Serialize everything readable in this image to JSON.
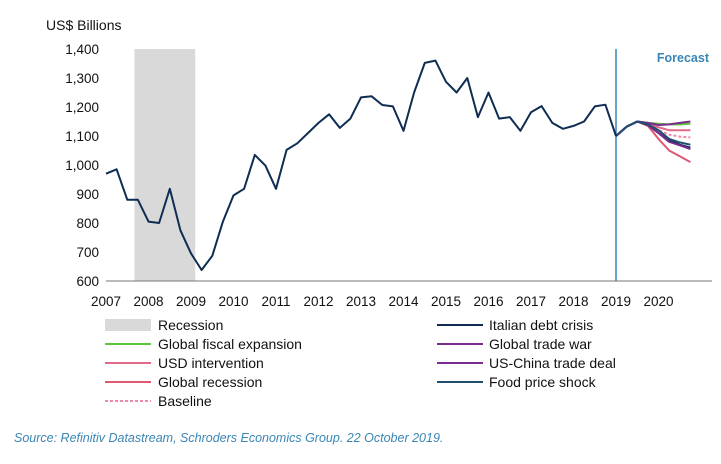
{
  "chart_data": {
    "type": "line",
    "ylabel": "US$ Billions",
    "ylim": [
      600,
      1400
    ],
    "yticks": [
      600,
      700,
      800,
      900,
      1000,
      1100,
      1200,
      1300,
      1400
    ],
    "ytick_labels": [
      "600",
      "700",
      "800",
      "900",
      "1,000",
      "1,100",
      "1,200",
      "1,300",
      "1,400"
    ],
    "xlim": [
      2007,
      2021
    ],
    "xticks": [
      2007,
      2008,
      2009,
      2010,
      2011,
      2012,
      2013,
      2014,
      2015,
      2016,
      2017,
      2018,
      2019,
      2020
    ],
    "xtick_labels": [
      "2007",
      "2008",
      "2009",
      "2010",
      "2011",
      "2012",
      "2013",
      "2014",
      "2015",
      "2016",
      "2017",
      "2018",
      "2019",
      "2020"
    ],
    "recession": {
      "label": "Recession",
      "start": 2007.67,
      "end": 2009.1,
      "color": "#d9d9d9"
    },
    "forecast": {
      "label": "Forecast",
      "start": 2019.0,
      "color": "#3a86b5"
    },
    "history": {
      "name": "History",
      "color": "#0f2d52",
      "x": [
        2007.0,
        2007.25,
        2007.5,
        2007.75,
        2008.0,
        2008.25,
        2008.5,
        2008.75,
        2009.0,
        2009.25,
        2009.5,
        2009.75,
        2010.0,
        2010.25,
        2010.5,
        2010.75,
        2011.0,
        2011.25,
        2011.5,
        2011.75,
        2012.0,
        2012.25,
        2012.5,
        2012.75,
        2013.0,
        2013.25,
        2013.5,
        2013.75,
        2014.0,
        2014.25,
        2014.5,
        2014.75,
        2015.0,
        2015.25,
        2015.5,
        2015.75,
        2016.0,
        2016.25,
        2016.5,
        2016.75,
        2017.0,
        2017.25,
        2017.5,
        2017.75,
        2018.0,
        2018.25,
        2018.5,
        2018.75,
        2019.0
      ],
      "values": [
        970,
        985,
        880,
        880,
        805,
        800,
        918,
        775,
        695,
        638,
        687,
        805,
        895,
        918,
        1035,
        998,
        918,
        1052,
        1075,
        1110,
        1145,
        1175,
        1128,
        1160,
        1233,
        1237,
        1207,
        1202,
        1118,
        1250,
        1352,
        1360,
        1287,
        1250,
        1300,
        1165,
        1250,
        1160,
        1165,
        1118,
        1182,
        1203,
        1145,
        1125,
        1135,
        1150,
        1202,
        1208,
        1100
      ]
    },
    "forecast_x": [
      2019.0,
      2019.25,
      2019.5,
      2019.75,
      2020.0,
      2020.25,
      2020.5,
      2020.75
    ],
    "series": [
      {
        "name": "Global fiscal expansion",
        "color": "#5ec43a",
        "dashed": false,
        "values": [
          1100,
          1132,
          1150,
          1145,
          1142,
          1140,
          1140,
          1142
        ]
      },
      {
        "name": "USD intervention",
        "color": "#e06a88",
        "dashed": false,
        "values": [
          1100,
          1132,
          1150,
          1140,
          1130,
          1120,
          1120,
          1120
        ]
      },
      {
        "name": "Global recession",
        "color": "#e05874",
        "dashed": false,
        "values": [
          1100,
          1132,
          1150,
          1135,
          1090,
          1050,
          1030,
          1010
        ]
      },
      {
        "name": "Baseline",
        "color": "#f08aa8",
        "dashed": true,
        "values": [
          1100,
          1132,
          1150,
          1140,
          1120,
          1105,
          1098,
          1095
        ]
      },
      {
        "name": "Italian debt crisis",
        "color": "#0f2d52",
        "dashed": false,
        "values": [
          1100,
          1132,
          1150,
          1138,
          1110,
          1085,
          1070,
          1060
        ]
      },
      {
        "name": "Global trade war",
        "color": "#7a2b8f",
        "dashed": false,
        "values": [
          1100,
          1132,
          1150,
          1138,
          1110,
          1080,
          1068,
          1055
        ]
      },
      {
        "name": "US-China trade deal",
        "color": "#7a2b8f",
        "dashed": false,
        "values": [
          1100,
          1132,
          1150,
          1145,
          1138,
          1140,
          1145,
          1150
        ]
      },
      {
        "name": "Food price shock",
        "color": "#1f4e6e",
        "dashed": false,
        "values": [
          1100,
          1132,
          1150,
          1140,
          1120,
          1090,
          1078,
          1070
        ]
      }
    ],
    "legend": [
      {
        "name": "Recession",
        "kind": "box",
        "color": "#d9d9d9",
        "dashed": false
      },
      {
        "name": "Italian debt crisis",
        "kind": "line",
        "color": "#0f2d52",
        "dashed": false
      },
      {
        "name": "Global fiscal expansion",
        "kind": "line",
        "color": "#5ec43a",
        "dashed": false
      },
      {
        "name": "Global trade war",
        "kind": "line",
        "color": "#7a2b8f",
        "dashed": false
      },
      {
        "name": "USD intervention",
        "kind": "line",
        "color": "#e06a88",
        "dashed": false
      },
      {
        "name": "US-China trade deal",
        "kind": "line",
        "color": "#7a2b8f",
        "dashed": false
      },
      {
        "name": "Global recession",
        "kind": "line",
        "color": "#e05874",
        "dashed": false
      },
      {
        "name": "Food price shock",
        "kind": "line",
        "color": "#1f4e6e",
        "dashed": false
      },
      {
        "name": "Baseline",
        "kind": "line",
        "color": "#f08aa8",
        "dashed": true
      }
    ]
  },
  "source": "Source: Refinitiv Datastream, Schroders Economics Group. 22 October 2019."
}
